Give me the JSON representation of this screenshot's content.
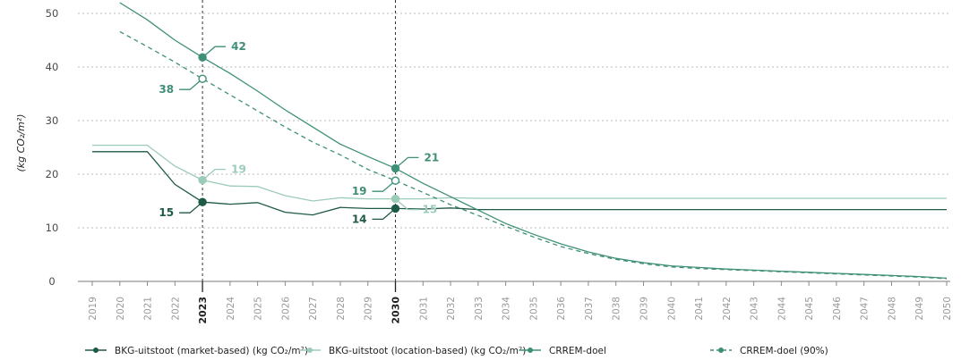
{
  "chart_data": {
    "type": "line",
    "ylabel": "(kg CO₂/m²)",
    "xlabel": "",
    "title": "",
    "ylim": [
      0,
      50
    ],
    "yticks": [
      0,
      10,
      20,
      30,
      40,
      50
    ],
    "x": [
      2019,
      2020,
      2021,
      2022,
      2023,
      2024,
      2025,
      2026,
      2027,
      2028,
      2029,
      2030,
      2031,
      2032,
      2033,
      2034,
      2035,
      2036,
      2037,
      2038,
      2039,
      2040,
      2041,
      2042,
      2043,
      2044,
      2045,
      2046,
      2047,
      2048,
      2049,
      2050
    ],
    "highlight_years": [
      2023,
      2030
    ],
    "grid": "horizontal dotted",
    "legend_position": "bottom",
    "series": [
      {
        "name": "BKG-uitstoot (market-based) (kg CO₂/m²)",
        "color": "#1f5a48",
        "dashed": false,
        "x": [
          2019,
          2020,
          2021,
          2022,
          2023,
          2024,
          2025,
          2026,
          2027,
          2028,
          2029,
          2030,
          2031,
          2032,
          2033,
          2050
        ],
        "values": [
          24.2,
          24.2,
          24.2,
          18.1,
          14.8,
          14.4,
          14.7,
          12.9,
          12.4,
          13.8,
          13.6,
          13.6,
          13.5,
          13.7,
          13.4,
          13.4
        ]
      },
      {
        "name": "BKG-uitstoot (location-based) (kg CO₂/m²)",
        "color": "#9ccbb8",
        "dashed": false,
        "x": [
          2019,
          2020,
          2021,
          2022,
          2023,
          2024,
          2025,
          2026,
          2027,
          2028,
          2029,
          2030,
          2031,
          2032,
          2033,
          2050
        ],
        "values": [
          25.4,
          25.4,
          25.4,
          21.5,
          18.9,
          17.8,
          17.7,
          16.0,
          15.0,
          15.6,
          15.4,
          15.4,
          15.4,
          15.6,
          15.5,
          15.5
        ]
      },
      {
        "name": "CRREM-doel",
        "color": "#3f8f78",
        "dashed": false,
        "x": [
          2020,
          2021,
          2022,
          2023,
          2024,
          2025,
          2026,
          2027,
          2028,
          2029,
          2030,
          2031,
          2032,
          2033,
          2034,
          2035,
          2036,
          2037,
          2038,
          2039,
          2040,
          2041,
          2042,
          2043,
          2044,
          2045,
          2046,
          2047,
          2048,
          2049,
          2050
        ],
        "values": [
          52.0,
          48.8,
          45.0,
          41.8,
          38.8,
          35.5,
          32.0,
          28.8,
          25.6,
          23.3,
          21.1,
          18.3,
          15.8,
          13.3,
          10.8,
          8.8,
          7.0,
          5.5,
          4.3,
          3.5,
          2.9,
          2.6,
          2.3,
          2.1,
          1.9,
          1.7,
          1.5,
          1.3,
          1.1,
          0.9,
          0.6
        ]
      },
      {
        "name": "CRREM-doel (90%)",
        "color": "#3f8f78",
        "dashed": true,
        "x": [
          2020,
          2021,
          2022,
          2023,
          2024,
          2025,
          2026,
          2027,
          2028,
          2029,
          2030,
          2031,
          2032,
          2033,
          2034,
          2035,
          2036,
          2037,
          2038,
          2039,
          2040,
          2041,
          2042,
          2043,
          2044,
          2045,
          2046,
          2047,
          2048,
          2049,
          2050
        ],
        "values": [
          46.6,
          43.8,
          40.9,
          37.8,
          34.8,
          31.8,
          28.8,
          26.0,
          23.6,
          20.9,
          18.8,
          16.6,
          14.3,
          12.3,
          10.3,
          8.3,
          6.5,
          5.2,
          4.1,
          3.3,
          2.7,
          2.4,
          2.2,
          2.0,
          1.8,
          1.6,
          1.4,
          1.2,
          1.0,
          0.8,
          0.5
        ]
      }
    ],
    "annotations": [
      {
        "label": "42",
        "x": 2023,
        "y": 41.8,
        "series": 2,
        "side": "right"
      },
      {
        "label": "38",
        "x": 2023,
        "y": 37.8,
        "series": 3,
        "side": "left",
        "hollow": true
      },
      {
        "label": "19",
        "x": 2023,
        "y": 18.9,
        "series": 1,
        "side": "right"
      },
      {
        "label": "15",
        "x": 2023,
        "y": 14.8,
        "series": 0,
        "side": "left"
      },
      {
        "label": "21",
        "x": 2030,
        "y": 21.1,
        "series": 2,
        "side": "right"
      },
      {
        "label": "19",
        "x": 2030,
        "y": 18.8,
        "series": 3,
        "side": "left",
        "hollow": true
      },
      {
        "label": "14",
        "x": 2030,
        "y": 13.6,
        "series": 0,
        "side": "left"
      },
      {
        "label": "15",
        "x": 2030,
        "y": 15.4,
        "series": 1,
        "side": "right-down"
      }
    ]
  }
}
